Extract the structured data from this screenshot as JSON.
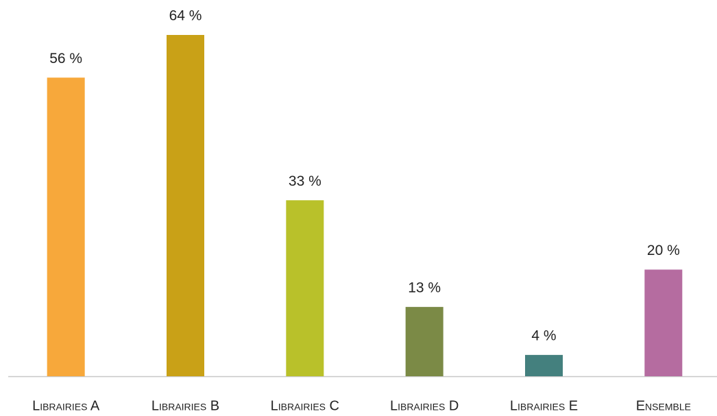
{
  "chart_data": {
    "type": "bar",
    "categories": [
      "Librairies A",
      "Librairies B",
      "Librairies C",
      "Librairies D",
      "Librairies E",
      "Ensemble"
    ],
    "values": [
      56,
      64,
      33,
      13,
      4,
      20
    ],
    "value_labels": [
      "56 %",
      "64 %",
      "33 %",
      "13 %",
      "4 %",
      "20 %"
    ],
    "colors": [
      "#f7a83b",
      "#c9a117",
      "#b9c12a",
      "#7b8a46",
      "#44807e",
      "#b56ca0"
    ],
    "grid": false
  }
}
